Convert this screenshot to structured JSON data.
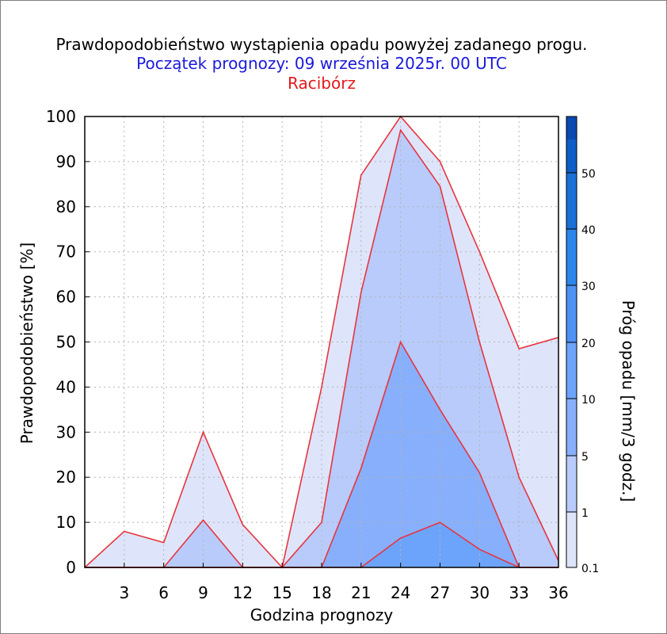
{
  "chart_data": {
    "type": "area",
    "title": "Prawdopodobieństwo wystąpienia opadu powyżej zadanego progu.",
    "subtitle": "Początek prognozy: 09 września 2025r. 00 UTC",
    "location": "Racibórz",
    "xlabel": "Godzina prognozy",
    "ylabel": "Prawdopodobieństwo [%]",
    "colorbar_label": "Próg opadu [mm/3 godz.]",
    "xlim": [
      0,
      36
    ],
    "ylim": [
      0,
      100
    ],
    "x_ticks": [
      3,
      6,
      9,
      12,
      15,
      18,
      21,
      24,
      27,
      30,
      33,
      36
    ],
    "y_ticks": [
      0,
      10,
      20,
      30,
      40,
      50,
      60,
      70,
      80,
      90,
      100
    ],
    "grid": true,
    "x": [
      0,
      3,
      6,
      9,
      12,
      15,
      18,
      21,
      24,
      27,
      30,
      33,
      36
    ],
    "series": [
      {
        "threshold": "0.1",
        "color": "#dee5fb",
        "values": [
          0,
          8,
          5.5,
          30,
          9.5,
          0,
          40,
          87,
          100,
          90,
          70,
          48.5,
          51
        ]
      },
      {
        "threshold": "1",
        "color": "#b8cbfb",
        "values": [
          0,
          0,
          0,
          10.5,
          0,
          0,
          10,
          61,
          97,
          84.5,
          50,
          20,
          1.5
        ]
      },
      {
        "threshold": "5",
        "color": "#88affb",
        "values": [
          0,
          0,
          0,
          0,
          0,
          0,
          0,
          22,
          50,
          35,
          21,
          0,
          0
        ]
      },
      {
        "threshold": "10",
        "color": "#6da4fb",
        "values": [
          0,
          0,
          0,
          0,
          0,
          0,
          0,
          0,
          6.5,
          10,
          4,
          0,
          0
        ]
      }
    ],
    "colorbar": {
      "tick_labels": [
        "0.1",
        "1",
        "5",
        "10",
        "20",
        "30",
        "40",
        "50"
      ],
      "colors": [
        "#dee5fb",
        "#b8cbfb",
        "#88affb",
        "#6da4fb",
        "#4d92f5",
        "#2b86ec",
        "#1970d8",
        "#0d5ec8",
        "#0a4ab0"
      ]
    },
    "colors": {
      "title": "#000000",
      "subtitle": "#1a1adc",
      "location": "#e41a1c",
      "series_outline": "#e8343d",
      "grid": "#b4b4b4"
    }
  }
}
